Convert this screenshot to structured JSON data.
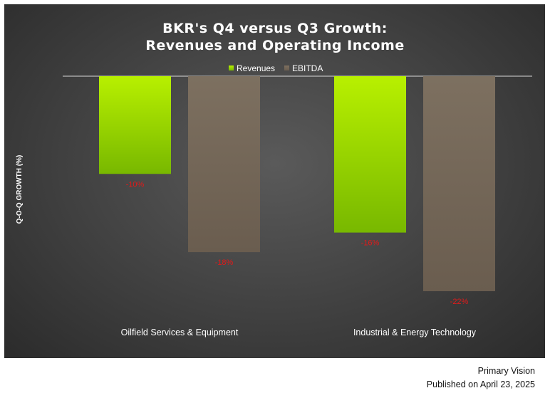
{
  "colors": {
    "revenues_top": "#b8f000",
    "revenues_bottom": "#78b800",
    "ebitda_top": "#7d7060",
    "ebitda_bottom": "#6a5d4f",
    "data_label": "#e01a1a"
  },
  "chart_data": {
    "type": "bar",
    "title": "BKR's Q4 versus Q3 Growth:",
    "subtitle": "Revenues and Operating Income",
    "ylabel": "Q-O-Q GROWTH (%)",
    "xlabel": "",
    "categories": [
      "Oilfield Services & Equipment",
      "Industrial & Energy Technology"
    ],
    "series": [
      {
        "name": "Revenues",
        "values": [
          -10,
          -16
        ],
        "labels": [
          "-10%",
          "-16%"
        ]
      },
      {
        "name": "EBITDA",
        "values": [
          -18,
          -22
        ],
        "labels": [
          "-18%",
          "-22%"
        ]
      }
    ],
    "ylim": [
      -22,
      0
    ],
    "grid": false,
    "legend_position": "top-center"
  },
  "footer": {
    "source": "Primary Vision",
    "published": "Published on April 23, 2025"
  }
}
